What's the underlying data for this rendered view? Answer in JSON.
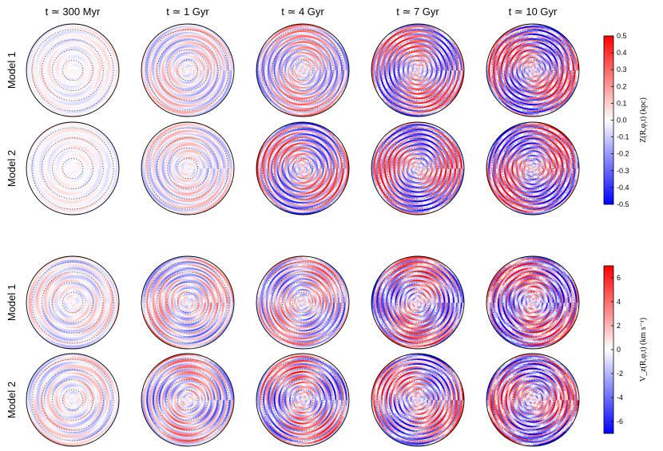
{
  "chart_data": [
    {
      "type": "heatmap",
      "quantity_label": "Z(R,φ,t) (kpc)",
      "colormap": [
        "#0000ff",
        "#ffffff",
        "#ff0000"
      ],
      "colorbar_range": [
        -0.5,
        0.5
      ],
      "colorbar_ticks": [
        "0.5",
        "0.4",
        "0.3",
        "0.2",
        "0.1",
        "0.0",
        "-0.1",
        "-0.2",
        "-0.3",
        "-0.4",
        "-0.5"
      ],
      "rows": [
        "Model 1",
        "Model 2"
      ],
      "columns": [
        "t ≃ 300 Myr",
        "t ≃ 1 Gyr",
        "t ≃ 4 Gyr",
        "t ≃ 7 Gyr",
        "t ≃ 10 Gyr"
      ],
      "amplitude": [
        [
          0.07,
          0.18,
          0.3,
          0.45,
          0.5
        ],
        [
          0.06,
          0.16,
          0.42,
          0.48,
          0.5
        ]
      ]
    },
    {
      "type": "heatmap",
      "quantity_label": "V_z(R,φ,t) (km s⁻¹)",
      "colormap": [
        "#0000ff",
        "#ffffff",
        "#ff0000"
      ],
      "colorbar_range": [
        -7,
        7
      ],
      "colorbar_ticks": [
        "6",
        "4",
        "2",
        "0",
        "-2",
        "-4",
        "-6"
      ],
      "rows": [
        "Model 1",
        "Model 2"
      ],
      "columns": [
        "t ≃ 300 Myr",
        "t ≃ 1 Gyr",
        "t ≃ 4 Gyr",
        "t ≃ 7 Gyr",
        "t ≃ 10 Gyr"
      ],
      "amplitude": [
        [
          1.8,
          3.5,
          4.5,
          6.0,
          6.5
        ],
        [
          2.0,
          4.0,
          5.5,
          6.0,
          6.5
        ]
      ]
    }
  ]
}
